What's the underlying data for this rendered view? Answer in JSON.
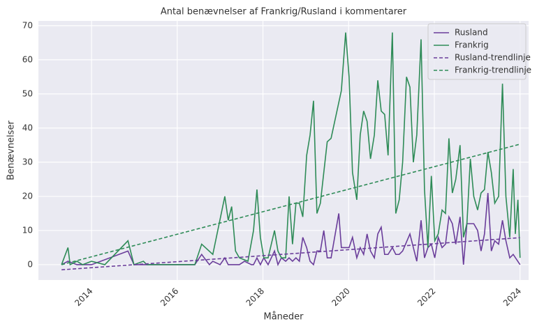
{
  "chart_data": {
    "type": "line",
    "title": "Antal benævnelser af Frankrig/Rusland i kommentarer",
    "x_label": "Måneder",
    "y_label": "Benævnelser",
    "xlim": [
      2012.76,
      2024.2
    ],
    "ylim": [
      -4.5,
      71.4
    ],
    "xticks": [
      2014,
      2016,
      2018,
      2020,
      2022,
      2024
    ],
    "yticks": [
      0,
      10,
      20,
      30,
      40,
      50,
      60,
      70
    ],
    "grid": true,
    "legend": "upper right",
    "series": [
      {
        "name": "Rusland",
        "color": "#6a3d9a",
        "dashed": false,
        "x": [
          2013.3,
          2013.45,
          2013.66,
          2014.0,
          2014.85,
          2014.99,
          2016.41,
          2016.57,
          2016.75,
          2016.83,
          2017.0,
          2017.11,
          2017.19,
          2017.45,
          2017.57,
          2017.73,
          2017.78,
          2017.86,
          2017.94,
          2018.02,
          2018.12,
          2018.27,
          2018.35,
          2018.43,
          2018.53,
          2018.61,
          2018.69,
          2018.77,
          2018.85,
          2018.93,
          2019.02,
          2019.1,
          2019.18,
          2019.26,
          2019.34,
          2019.42,
          2019.5,
          2019.59,
          2019.77,
          2019.83,
          2020.01,
          2020.09,
          2020.19,
          2020.27,
          2020.35,
          2020.43,
          2020.51,
          2020.6,
          2020.68,
          2020.76,
          2020.84,
          2020.92,
          2021.02,
          2021.1,
          2021.18,
          2021.26,
          2021.43,
          2021.51,
          2021.59,
          2021.69,
          2021.77,
          2021.85,
          2021.93,
          2022.01,
          2022.09,
          2022.18,
          2022.26,
          2022.34,
          2022.42,
          2022.5,
          2022.6,
          2022.68,
          2022.76,
          2022.92,
          2023.01,
          2023.09,
          2023.17,
          2023.25,
          2023.33,
          2023.41,
          2023.5,
          2023.59,
          2023.67,
          2023.76,
          2023.84,
          2024.0
        ],
        "values": [
          0,
          1,
          0,
          0,
          4,
          0,
          0,
          3,
          0,
          1,
          0,
          2,
          0,
          0,
          1,
          0,
          0,
          2,
          0,
          2,
          0,
          4,
          0,
          2,
          1,
          2,
          1,
          2,
          1,
          8,
          5,
          1,
          0,
          4,
          4,
          10,
          2,
          2,
          15,
          5,
          5,
          8,
          2,
          5,
          3,
          9,
          4,
          2,
          9,
          11,
          3,
          3,
          5,
          3,
          3,
          4,
          9,
          5,
          1,
          13,
          2,
          5,
          6,
          2,
          8,
          5,
          6,
          14,
          12,
          6,
          14,
          0,
          12,
          12,
          10,
          4,
          9,
          21,
          4,
          7,
          6,
          13,
          7,
          2,
          3,
          0
        ]
      },
      {
        "name": "Frankrig",
        "color": "#2e8b57",
        "dashed": false,
        "x": [
          2013.3,
          2013.45,
          2013.5,
          2013.66,
          2013.79,
          2014.0,
          2014.31,
          2014.85,
          2014.99,
          2015.21,
          2015.29,
          2016.41,
          2016.57,
          2016.83,
          2017.11,
          2017.19,
          2017.27,
          2017.36,
          2017.45,
          2017.65,
          2017.78,
          2017.86,
          2017.94,
          2018.02,
          2018.12,
          2018.27,
          2018.35,
          2018.43,
          2018.53,
          2018.61,
          2018.69,
          2018.77,
          2018.85,
          2018.93,
          2019.02,
          2019.1,
          2019.18,
          2019.26,
          2019.34,
          2019.42,
          2019.5,
          2019.59,
          2019.83,
          2019.93,
          2020.01,
          2020.09,
          2020.19,
          2020.27,
          2020.35,
          2020.43,
          2020.51,
          2020.6,
          2020.68,
          2020.76,
          2020.84,
          2020.92,
          2021.02,
          2021.1,
          2021.18,
          2021.26,
          2021.35,
          2021.43,
          2021.51,
          2021.59,
          2021.69,
          2021.77,
          2021.85,
          2021.93,
          2022.01,
          2022.09,
          2022.18,
          2022.26,
          2022.34,
          2022.42,
          2022.5,
          2022.6,
          2022.68,
          2022.76,
          2022.84,
          2022.92,
          2023.01,
          2023.09,
          2023.17,
          2023.25,
          2023.33,
          2023.41,
          2023.5,
          2023.59,
          2023.67,
          2023.76,
          2023.84,
          2023.89,
          2023.95,
          2024.0
        ],
        "values": [
          0,
          5,
          0,
          1,
          0,
          1,
          0,
          7,
          0,
          1,
          0,
          0,
          6,
          3,
          20,
          13,
          17,
          4,
          2,
          1,
          10,
          22,
          8,
          2,
          2,
          10,
          4,
          2,
          2,
          20,
          6,
          18,
          18,
          14,
          32,
          38,
          48,
          15,
          18,
          27,
          36,
          37,
          51,
          68,
          55,
          27,
          19,
          38,
          45,
          42,
          31,
          38,
          54,
          45,
          44,
          32,
          68,
          15,
          19,
          30,
          55,
          52,
          30,
          38,
          66,
          22,
          5,
          26,
          7,
          9,
          16,
          15,
          37,
          21,
          25,
          35,
          8,
          12,
          31,
          20,
          16,
          21,
          22,
          33,
          27,
          18,
          20,
          53,
          20,
          8,
          28,
          9,
          19,
          2
        ]
      },
      {
        "name": "Rusland-trendlinje",
        "color": "#6a3d9a",
        "dashed": true,
        "x": [
          2013.3,
          2024.0
        ],
        "values": [
          -1.5,
          7.9
        ]
      },
      {
        "name": "Frankrig-trendlinje",
        "color": "#2e8b57",
        "dashed": true,
        "x": [
          2013.3,
          2024.0
        ],
        "values": [
          0,
          35.3
        ]
      }
    ]
  }
}
